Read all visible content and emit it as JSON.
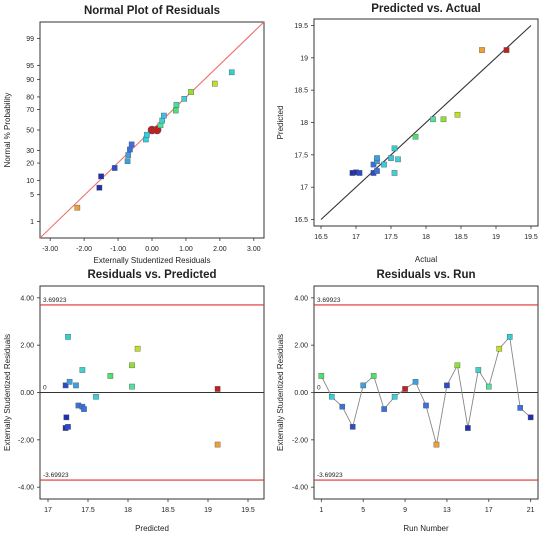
{
  "panel_colors": {
    "axis": "#333333",
    "fit_line_normal": "#f07070",
    "fit_line_parity": "#333333",
    "limit_line": "#e03030",
    "zero_line": "#333333",
    "run_line": "#888888",
    "marker_edge": "#555555"
  },
  "chart_data": [
    {
      "id": "normal",
      "type": "scatter",
      "title": "Normal Plot of Residuals",
      "xlabel": "Externally Studentized Residuals",
      "ylabel": "Normal % Probability",
      "xlim": [
        -3.3,
        3.3
      ],
      "xticks": [
        -3,
        -2,
        -1,
        0,
        1,
        2,
        3
      ],
      "xtick_labels": [
        "-3.00",
        "-2.00",
        "-1.00",
        "0.00",
        "1.00",
        "2.00",
        "3.00"
      ],
      "yscale": "normal-probability",
      "ylim_percent": [
        0.3,
        99.7
      ],
      "yticks": [
        1,
        5,
        10,
        20,
        30,
        50,
        70,
        80,
        90,
        95,
        99
      ],
      "ytick_labels": [
        "1",
        "5",
        "10",
        "20",
        "30",
        "50",
        "70",
        "80",
        "90",
        "95",
        "99"
      ],
      "fit_line": [
        [
          -3.3,
          0.3
        ],
        [
          3.3,
          99.7
        ]
      ],
      "points": [
        {
          "x": -2.2,
          "y": 2.4,
          "color": "#f0a030"
        },
        {
          "x": -1.55,
          "y": 7.1,
          "color": "#1f2fb0"
        },
        {
          "x": -1.5,
          "y": 11.9,
          "color": "#1f2fb0"
        },
        {
          "x": -1.1,
          "y": 16.7,
          "color": "#2a4ad0"
        },
        {
          "x": -0.72,
          "y": 21.4,
          "color": "#3aa0e0"
        },
        {
          "x": -0.7,
          "y": 26.2,
          "color": "#3aa0e0"
        },
        {
          "x": -0.65,
          "y": 31.0,
          "color": "#3a70e0"
        },
        {
          "x": -0.6,
          "y": 35.7,
          "color": "#3a70e0"
        },
        {
          "x": -0.18,
          "y": 40.5,
          "color": "#30d0e0"
        },
        {
          "x": -0.15,
          "y": 45.2,
          "color": "#30d0e0"
        },
        {
          "x": 0.0,
          "y": 50.0,
          "color": "#c02020",
          "large": true
        },
        {
          "x": 0.15,
          "y": 50.0,
          "color": "#c02020",
          "large": true
        },
        {
          "x": 0.25,
          "y": 54.8,
          "color": "#50e0a0"
        },
        {
          "x": 0.3,
          "y": 59.5,
          "color": "#40d0d0"
        },
        {
          "x": 0.35,
          "y": 64.3,
          "color": "#40c0e0"
        },
        {
          "x": 0.7,
          "y": 69.0,
          "color": "#50e070"
        },
        {
          "x": 0.72,
          "y": 73.8,
          "color": "#40e0a0"
        },
        {
          "x": 0.95,
          "y": 78.6,
          "color": "#40d0d0"
        },
        {
          "x": 1.15,
          "y": 83.3,
          "color": "#90e030"
        },
        {
          "x": 1.85,
          "y": 88.1,
          "color": "#c0e020"
        },
        {
          "x": 2.35,
          "y": 92.9,
          "color": "#30d0d0"
        }
      ]
    },
    {
      "id": "pva",
      "type": "scatter",
      "title": "Predicted vs. Actual",
      "xlabel": "Actual",
      "ylabel": "Predicted",
      "xlim": [
        16.4,
        19.6
      ],
      "ylim": [
        16.4,
        19.6
      ],
      "xticks": [
        16.5,
        17,
        17.5,
        18,
        18.5,
        19,
        19.5
      ],
      "xtick_labels": [
        "16.5",
        "17",
        "17.5",
        "18",
        "18.5",
        "19",
        "19.5"
      ],
      "yticks": [
        16.5,
        17,
        17.5,
        18,
        18.5,
        19,
        19.5
      ],
      "ytick_labels": [
        "16.5",
        "17",
        "17.5",
        "18",
        "18.5",
        "19",
        "19.5"
      ],
      "fit_line": [
        [
          16.5,
          16.5
        ],
        [
          19.5,
          19.5
        ]
      ],
      "points": [
        {
          "x": 16.95,
          "y": 17.22,
          "color": "#1f2fb0"
        },
        {
          "x": 17.0,
          "y": 17.23,
          "color": "#1f2fb0"
        },
        {
          "x": 17.05,
          "y": 17.22,
          "color": "#2a4ad0"
        },
        {
          "x": 17.25,
          "y": 17.22,
          "color": "#2a4ad0"
        },
        {
          "x": 17.25,
          "y": 17.35,
          "color": "#3a70e0"
        },
        {
          "x": 17.3,
          "y": 17.25,
          "color": "#3a70e0"
        },
        {
          "x": 17.3,
          "y": 17.4,
          "color": "#3aa0e0"
        },
        {
          "x": 17.3,
          "y": 17.45,
          "color": "#3aa0e0"
        },
        {
          "x": 17.4,
          "y": 17.35,
          "color": "#30d0e0"
        },
        {
          "x": 17.5,
          "y": 17.45,
          "color": "#40c0e0"
        },
        {
          "x": 17.55,
          "y": 17.22,
          "color": "#40d0d0"
        },
        {
          "x": 17.55,
          "y": 17.6,
          "color": "#30d0d0"
        },
        {
          "x": 17.6,
          "y": 17.43,
          "color": "#40d0d0"
        },
        {
          "x": 17.85,
          "y": 17.78,
          "color": "#50e070"
        },
        {
          "x": 18.1,
          "y": 18.05,
          "color": "#50e0a0"
        },
        {
          "x": 18.25,
          "y": 18.05,
          "color": "#90e030"
        },
        {
          "x": 18.45,
          "y": 18.12,
          "color": "#c0e020"
        },
        {
          "x": 18.8,
          "y": 19.12,
          "color": "#f0a030"
        },
        {
          "x": 19.15,
          "y": 19.12,
          "color": "#c02020"
        }
      ]
    },
    {
      "id": "rvp",
      "type": "scatter",
      "title": "Residuals vs. Predicted",
      "xlabel": "Predicted",
      "ylabel": "Externally Studentized Residuals",
      "xlim": [
        16.9,
        19.7
      ],
      "ylim": [
        -4.5,
        4.5
      ],
      "xticks": [
        17,
        17.5,
        18,
        18.5,
        19,
        19.5
      ],
      "xtick_labels": [
        "17",
        "17.5",
        "18",
        "18.5",
        "19",
        "19.5"
      ],
      "yticks": [
        -4,
        -2,
        0,
        2,
        4
      ],
      "ytick_labels": [
        "-4.00",
        "-2.00",
        "0.00",
        "2.00",
        "4.00"
      ],
      "limit_lines": [
        3.69923,
        -3.69923
      ],
      "limit_labels": [
        "3.69923",
        "-3.69923"
      ],
      "zero_label": "0",
      "points": [
        {
          "x": 17.22,
          "y": -1.5,
          "color": "#1f2fb0"
        },
        {
          "x": 17.23,
          "y": -1.05,
          "color": "#1f2fb0"
        },
        {
          "x": 17.25,
          "y": -1.45,
          "color": "#2a4ad0"
        },
        {
          "x": 17.22,
          "y": 0.3,
          "color": "#2a4ad0"
        },
        {
          "x": 17.25,
          "y": 2.35,
          "color": "#30d0d0"
        },
        {
          "x": 17.27,
          "y": 0.45,
          "color": "#3aa0e0"
        },
        {
          "x": 17.35,
          "y": 0.3,
          "color": "#3aa0e0"
        },
        {
          "x": 17.38,
          "y": -0.55,
          "color": "#3a70e0"
        },
        {
          "x": 17.43,
          "y": -0.6,
          "color": "#3a70e0"
        },
        {
          "x": 17.45,
          "y": -0.7,
          "color": "#3a70e0"
        },
        {
          "x": 17.43,
          "y": 0.95,
          "color": "#40d0d0"
        },
        {
          "x": 17.6,
          "y": -0.18,
          "color": "#30d0e0"
        },
        {
          "x": 17.78,
          "y": 0.7,
          "color": "#50e070"
        },
        {
          "x": 18.05,
          "y": 1.15,
          "color": "#90e030"
        },
        {
          "x": 18.05,
          "y": 0.25,
          "color": "#50e0a0"
        },
        {
          "x": 18.12,
          "y": 1.85,
          "color": "#c0e020"
        },
        {
          "x": 19.12,
          "y": 0.15,
          "color": "#c02020"
        },
        {
          "x": 19.12,
          "y": -2.2,
          "color": "#f0a030"
        }
      ]
    },
    {
      "id": "rvr",
      "type": "line",
      "title": "Residuals vs. Run",
      "xlabel": "Run Number",
      "ylabel": "Externally Studentized Residuals",
      "xlim": [
        0.3,
        21.7
      ],
      "ylim": [
        -4.5,
        4.5
      ],
      "xticks": [
        1,
        5,
        9,
        13,
        17,
        21
      ],
      "xtick_labels": [
        "1",
        "5",
        "9",
        "13",
        "17",
        "21"
      ],
      "yticks": [
        -4,
        -2,
        0,
        2,
        4
      ],
      "ytick_labels": [
        "-4.00",
        "-2.00",
        "0.00",
        "2.00",
        "4.00"
      ],
      "limit_lines": [
        3.69923,
        -3.69923
      ],
      "limit_labels": [
        "3.69923",
        "-3.69923"
      ],
      "zero_label": "0",
      "points": [
        {
          "x": 1,
          "y": 0.7,
          "color": "#50e070"
        },
        {
          "x": 2,
          "y": -0.18,
          "color": "#30d0e0"
        },
        {
          "x": 3,
          "y": -0.6,
          "color": "#3a70e0"
        },
        {
          "x": 4,
          "y": -1.45,
          "color": "#2a4ad0"
        },
        {
          "x": 5,
          "y": 0.3,
          "color": "#3aa0e0"
        },
        {
          "x": 6,
          "y": 0.7,
          "color": "#50e070"
        },
        {
          "x": 7,
          "y": -0.7,
          "color": "#3a70e0"
        },
        {
          "x": 8,
          "y": -0.18,
          "color": "#30d0e0"
        },
        {
          "x": 9,
          "y": 0.15,
          "color": "#c02020"
        },
        {
          "x": 10,
          "y": 0.45,
          "color": "#3aa0e0"
        },
        {
          "x": 11,
          "y": -0.55,
          "color": "#3a70e0"
        },
        {
          "x": 12,
          "y": -2.2,
          "color": "#f0a030"
        },
        {
          "x": 13,
          "y": 0.3,
          "color": "#2a4ad0"
        },
        {
          "x": 14,
          "y": 1.15,
          "color": "#90e030"
        },
        {
          "x": 15,
          "y": -1.5,
          "color": "#1f2fb0"
        },
        {
          "x": 16,
          "y": 0.95,
          "color": "#40d0d0"
        },
        {
          "x": 17,
          "y": 0.25,
          "color": "#50e0a0"
        },
        {
          "x": 18,
          "y": 1.85,
          "color": "#c0e020"
        },
        {
          "x": 19,
          "y": 2.35,
          "color": "#30d0d0"
        },
        {
          "x": 20,
          "y": -0.65,
          "color": "#3a70e0"
        },
        {
          "x": 21,
          "y": -1.05,
          "color": "#1f2fb0"
        }
      ]
    }
  ]
}
